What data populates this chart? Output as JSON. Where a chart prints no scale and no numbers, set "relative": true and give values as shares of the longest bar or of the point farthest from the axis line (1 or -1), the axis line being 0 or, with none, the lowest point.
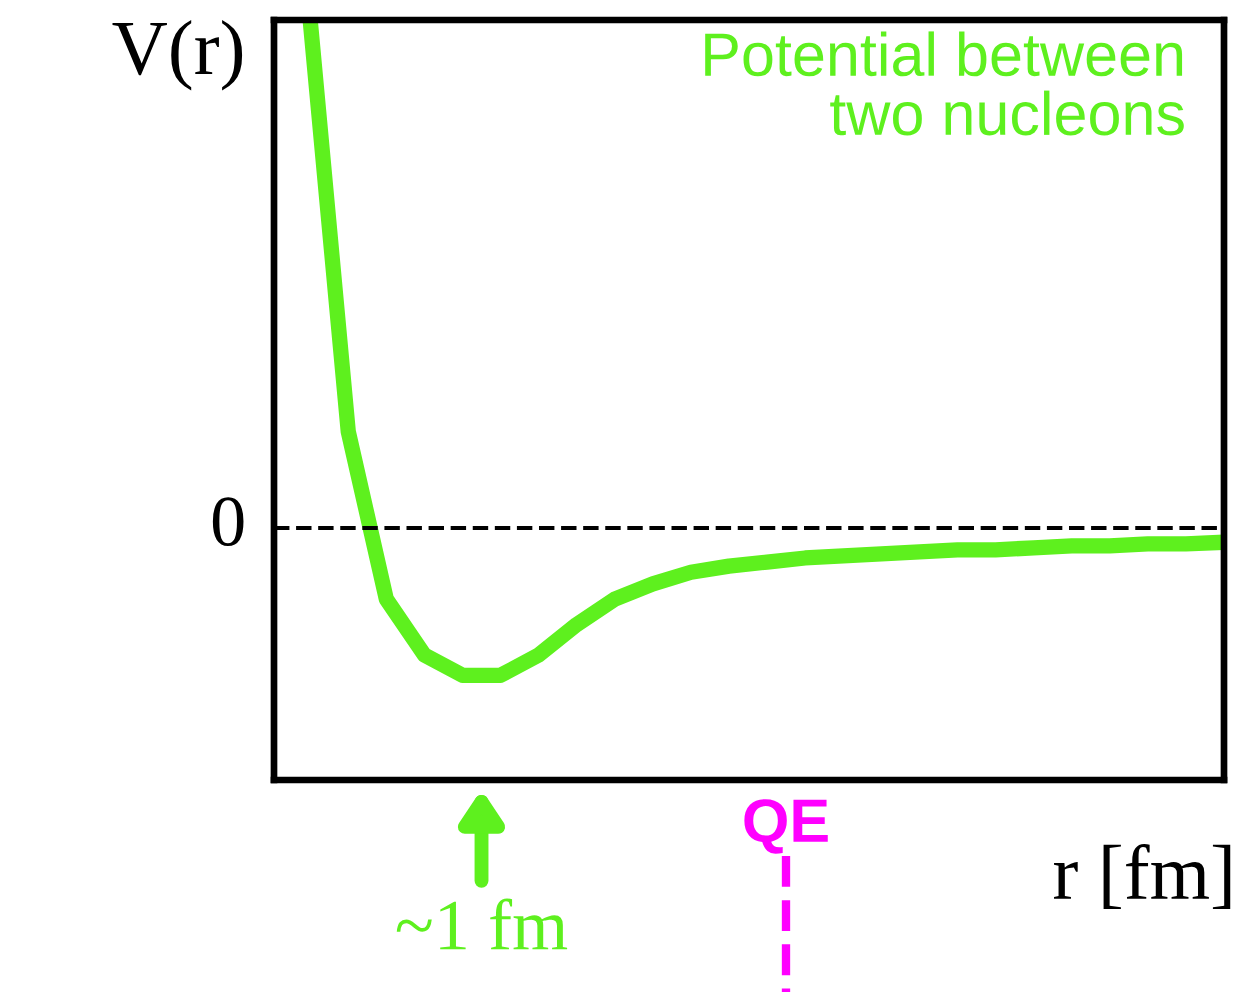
{
  "chart_data": {
    "type": "line",
    "relative": true,
    "ylabel": "V(r)",
    "xlabel": "r [fm]",
    "categories": [
      null,
      null,
      null,
      null,
      null,
      null,
      null,
      null,
      null,
      null,
      null,
      null,
      null,
      null,
      null,
      null,
      null,
      null,
      null,
      null,
      null,
      null,
      null,
      null,
      null
    ],
    "series": [
      {
        "color": "#5ef01e",
        "values": [
          1,
          0.19,
          -0.14,
          -0.25,
          -0.29,
          -0.29,
          -0.25,
          -0.19,
          -0.14,
          -0.11,
          -0.087,
          -0.075,
          -0.067,
          -0.059,
          -0.055,
          -0.051,
          -0.047,
          -0.043,
          -0.043,
          -0.039,
          -0.035,
          -0.035,
          -0.031,
          -0.031,
          -0.028
        ]
      }
    ],
    "ref_lines": [
      {
        "axis": "y",
        "value": 0,
        "label": "0",
        "color": "#000000",
        "line_style": "dashed"
      }
    ],
    "annotations": [
      "Potential between\ntwo nucleons",
      "~1 fm",
      "QE"
    ],
    "legend": false,
    "marker": "none",
    "line_style": "solid"
  }
}
